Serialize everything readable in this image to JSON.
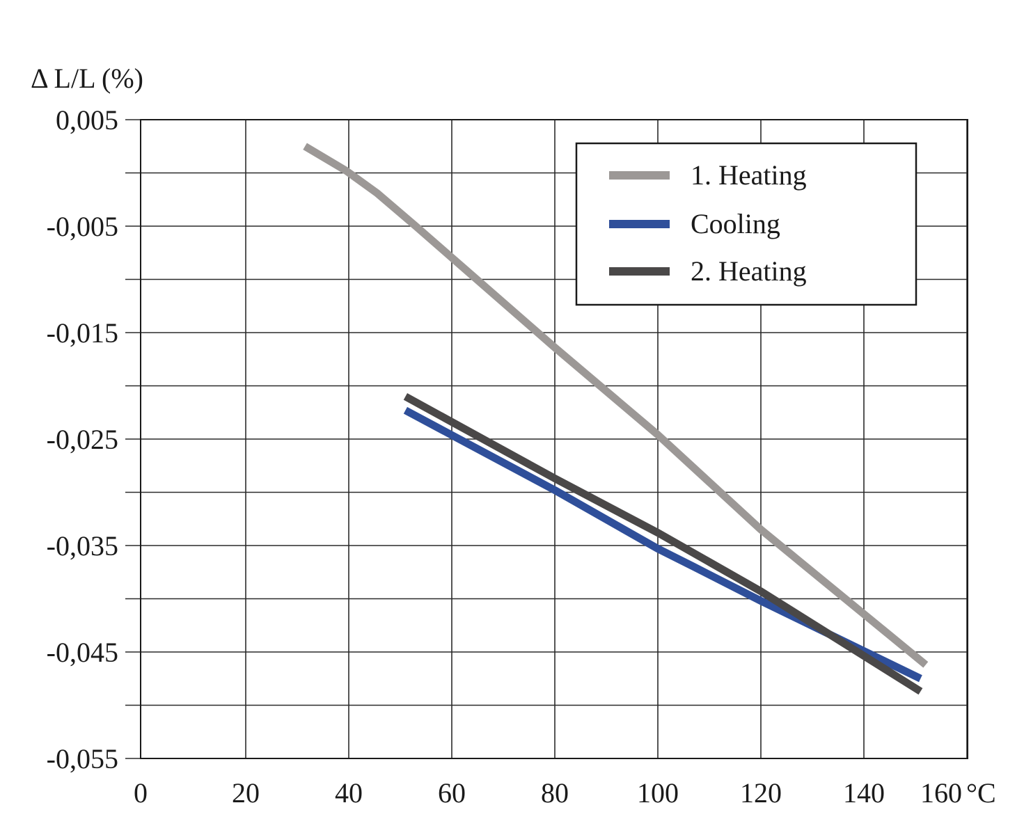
{
  "chart_data": {
    "type": "line",
    "title": "",
    "xlabel": "°C",
    "ylabel": "Δ L/L (%)",
    "xlim": [
      0,
      160
    ],
    "ylim": [
      -0.055,
      0.005
    ],
    "grid": true,
    "x_ticks": [
      0,
      20,
      40,
      60,
      80,
      100,
      120,
      140,
      160
    ],
    "x_tick_labels": [
      "0",
      "20",
      "40",
      "60",
      "80",
      "100",
      "120",
      "140",
      "160"
    ],
    "y_ticks": [
      0.005,
      -0.005,
      -0.015,
      -0.025,
      -0.035,
      -0.045,
      -0.055
    ],
    "y_tick_labels": [
      "0,005",
      "-0,005",
      "-0,015",
      "-0,025",
      "-0,035",
      "-0,045",
      "-0,055"
    ],
    "y_gridlines": [
      0.005,
      0.0,
      -0.005,
      -0.01,
      -0.015,
      -0.02,
      -0.025,
      -0.03,
      -0.035,
      -0.04,
      -0.045,
      -0.05,
      -0.055
    ],
    "legend_position": "top-right",
    "series": [
      {
        "name": "1. Heating",
        "color": "#9c9896",
        "x": [
          31.5,
          39.5,
          45.5,
          53,
          80,
          100,
          120,
          152
        ],
        "y": [
          0.0025,
          0.0002,
          -0.0019,
          -0.005,
          -0.0164,
          -0.0246,
          -0.0335,
          -0.0462
        ]
      },
      {
        "name": "Cooling",
        "color": "#2f4f9a",
        "x": [
          51,
          80,
          100,
          107,
          120,
          151
        ],
        "y": [
          -0.0223,
          -0.0298,
          -0.0353,
          -0.037,
          -0.0402,
          -0.0475
        ]
      },
      {
        "name": "2. Heating",
        "color": "#4a4848",
        "x": [
          51,
          80,
          100,
          120,
          151
        ],
        "y": [
          -0.021,
          -0.0287,
          -0.0338,
          -0.0393,
          -0.0487
        ]
      }
    ]
  }
}
